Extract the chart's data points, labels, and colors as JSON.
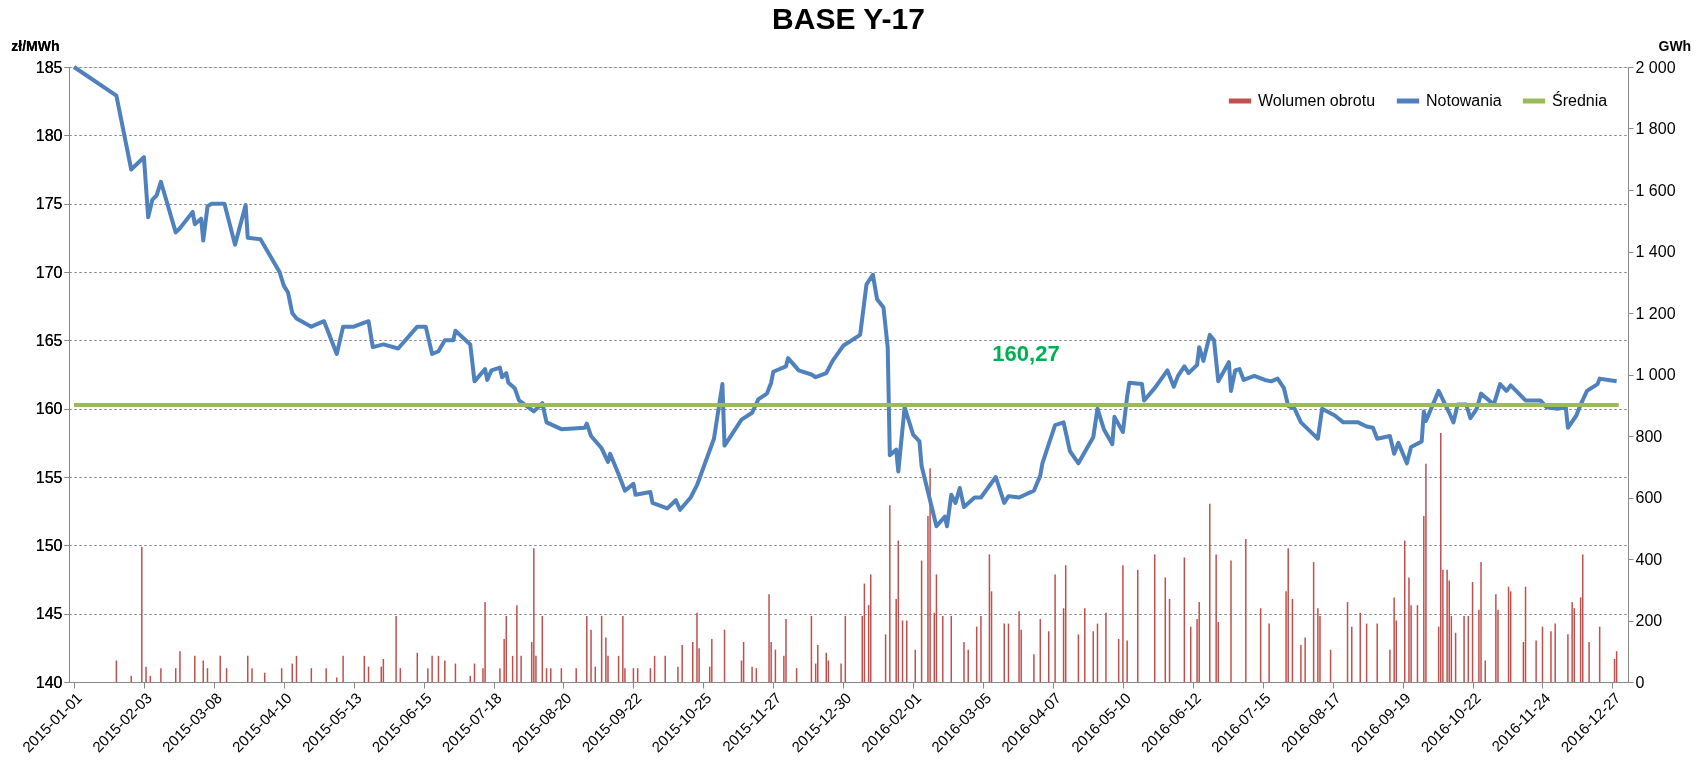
{
  "chart_data": {
    "type": "line",
    "title": "BASE   Y-17",
    "ylabel": "zł/MWh",
    "y2label": "GWh",
    "xlim": [
      "2015-01-01",
      "2017-01-01"
    ],
    "xticks": [
      "2015-01-01",
      "2015-02-03",
      "2015-03-08",
      "2015-04-10",
      "2015-05-13",
      "2015-06-15",
      "2015-07-18",
      "2015-08-20",
      "2015-09-22",
      "2015-10-25",
      "2015-11-27",
      "2015-12-30",
      "2016-02-01",
      "2016-03-05",
      "2016-04-07",
      "2016-05-10",
      "2016-06-12",
      "2016-07-15",
      "2016-08-17",
      "2016-09-19",
      "2016-10-22",
      "2016-11-24",
      "2016-12-27"
    ],
    "ylim": [
      140,
      185
    ],
    "yticks": [
      140,
      145,
      150,
      155,
      160,
      165,
      170,
      175,
      180,
      185
    ],
    "y2lim": [
      0,
      2000
    ],
    "y2ticks": [
      0,
      200,
      400,
      600,
      800,
      {
        "value": 1000,
        "label": "1 000"
      },
      {
        "value": 1200,
        "label": "1 200"
      },
      {
        "value": 1400,
        "label": "1 400"
      },
      {
        "value": 1600,
        "label": "1 600"
      },
      {
        "value": 1800,
        "label": "1 800"
      },
      {
        "value": 2000,
        "label": "2 000"
      }
    ],
    "grid": "y",
    "legend": "top right",
    "series": [
      {
        "name": "Wolumen obrotu",
        "type": "bar",
        "axis": "y2",
        "color": "#c0504d",
        "x": [
          "2015-01-21",
          "2015-01-28",
          "2015-02-02",
          "2015-02-04",
          "2015-02-06",
          "2015-02-11",
          "2015-02-18",
          "2015-02-20",
          "2015-02-27",
          "2015-03-03",
          "2015-03-05",
          "2015-03-11",
          "2015-03-14",
          "2015-03-24",
          "2015-03-26",
          "2015-04-01",
          "2015-04-09",
          "2015-04-14",
          "2015-04-16",
          "2015-04-23",
          "2015-04-30",
          "2015-05-05",
          "2015-05-08",
          "2015-05-18",
          "2015-05-20",
          "2015-05-26",
          "2015-05-27",
          "2015-06-02",
          "2015-06-04",
          "2015-06-12",
          "2015-06-17",
          "2015-06-19",
          "2015-06-22",
          "2015-06-25",
          "2015-06-30",
          "2015-07-07",
          "2015-07-09",
          "2015-07-13",
          "2015-07-14",
          "2015-07-21",
          "2015-07-23",
          "2015-07-24",
          "2015-07-27",
          "2015-07-29",
          "2015-07-31",
          "2015-08-05",
          "2015-08-06",
          "2015-08-07",
          "2015-08-10",
          "2015-08-12",
          "2015-08-14",
          "2015-08-19",
          "2015-08-26",
          "2015-08-31",
          "2015-09-02",
          "2015-09-04",
          "2015-09-07",
          "2015-09-09",
          "2015-09-10",
          "2015-09-15",
          "2015-09-17",
          "2015-09-18",
          "2015-09-22",
          "2015-09-24",
          "2015-09-30",
          "2015-10-02",
          "2015-10-07",
          "2015-10-13",
          "2015-10-15",
          "2015-10-20",
          "2015-10-22",
          "2015-10-23",
          "2015-10-28",
          "2015-10-29",
          "2015-11-04",
          "2015-11-12",
          "2015-11-13",
          "2015-11-17",
          "2015-11-19",
          "2015-11-25",
          "2015-11-26",
          "2015-11-28",
          "2015-12-02",
          "2015-12-03",
          "2015-12-08",
          "2015-12-15",
          "2015-12-17",
          "2015-12-18",
          "2015-12-22",
          "2015-12-23",
          "2015-12-29",
          "2015-12-31",
          "2016-01-08",
          "2016-01-09",
          "2016-01-11",
          "2016-01-12",
          "2016-01-19",
          "2016-01-21",
          "2016-01-24",
          "2016-01-25",
          "2016-01-27",
          "2016-01-29",
          "2016-02-02",
          "2016-02-05",
          "2016-02-08",
          "2016-02-09",
          "2016-02-11",
          "2016-02-12",
          "2016-02-15",
          "2016-02-19",
          "2016-02-25",
          "2016-02-27",
          "2016-03-02",
          "2016-03-04",
          "2016-03-08",
          "2016-03-09",
          "2016-03-15",
          "2016-03-17",
          "2016-03-22",
          "2016-03-23",
          "2016-03-29",
          "2016-04-01",
          "2016-04-05",
          "2016-04-08",
          "2016-04-12",
          "2016-04-13",
          "2016-04-19",
          "2016-04-22",
          "2016-04-26",
          "2016-04-28",
          "2016-05-02",
          "2016-05-08",
          "2016-05-10",
          "2016-05-12",
          "2016-05-17",
          "2016-05-25",
          "2016-05-30",
          "2016-06-01",
          "2016-06-08",
          "2016-06-11",
          "2016-06-14",
          "2016-06-15",
          "2016-06-20",
          "2016-06-23",
          "2016-06-24",
          "2016-06-30",
          "2016-07-07",
          "2016-07-14",
          "2016-07-18",
          "2016-07-26",
          "2016-07-27",
          "2016-07-29",
          "2016-08-02",
          "2016-08-04",
          "2016-08-08",
          "2016-08-10",
          "2016-08-11",
          "2016-08-16",
          "2016-08-24",
          "2016-08-26",
          "2016-08-30",
          "2016-09-02",
          "2016-09-07",
          "2016-09-13",
          "2016-09-15",
          "2016-09-16",
          "2016-09-20",
          "2016-09-22",
          "2016-09-23",
          "2016-09-26",
          "2016-09-29",
          "2016-09-30",
          "2016-10-06",
          "2016-10-07",
          "2016-10-08",
          "2016-10-10",
          "2016-10-11",
          "2016-10-12",
          "2016-10-14",
          "2016-10-18",
          "2016-10-20",
          "2016-10-22",
          "2016-10-25",
          "2016-10-26",
          "2016-10-28",
          "2016-11-02",
          "2016-11-03",
          "2016-11-08",
          "2016-11-09",
          "2016-11-15",
          "2016-11-16",
          "2016-11-21",
          "2016-11-24",
          "2016-11-28",
          "2016-11-30",
          "2016-12-06",
          "2016-12-08",
          "2016-12-09",
          "2016-12-12",
          "2016-12-13",
          "2016-12-16",
          "2016-12-21",
          "2016-12-28",
          "2016-12-29"
        ],
        "values": [
          70,
          20,
          440,
          50,
          20,
          45,
          45,
          100,
          85,
          70,
          45,
          85,
          45,
          85,
          45,
          30,
          45,
          60,
          85,
          45,
          45,
          15,
          85,
          85,
          50,
          50,
          75,
          215,
          45,
          95,
          45,
          85,
          85,
          70,
          60,
          20,
          60,
          45,
          260,
          45,
          140,
          215,
          85,
          250,
          85,
          130,
          435,
          85,
          215,
          45,
          45,
          45,
          45,
          215,
          170,
          50,
          215,
          145,
          85,
          85,
          215,
          45,
          45,
          45,
          45,
          85,
          85,
          50,
          120,
          130,
          225,
          110,
          50,
          140,
          170,
          70,
          130,
          50,
          45,
          285,
          130,
          105,
          85,
          205,
          45,
          215,
          60,
          120,
          95,
          70,
          60,
          215,
          215,
          320,
          250,
          350,
          155,
          575,
          270,
          460,
          200,
          200,
          105,
          395,
          540,
          695,
          225,
          350,
          215,
          215,
          130,
          105,
          180,
          215,
          415,
          295,
          190,
          190,
          230,
          170,
          90,
          205,
          165,
          350,
          240,
          380,
          155,
          240,
          165,
          190,
          225,
          140,
          380,
          135,
          365,
          415,
          340,
          270,
          405,
          180,
          205,
          260,
          580,
          415,
          195,
          395,
          465,
          240,
          190,
          295,
          435,
          270,
          120,
          145,
          390,
          240,
          215,
          105,
          260,
          180,
          225,
          190,
          190,
          105,
          275,
          200,
          460,
          340,
          250,
          250,
          540,
          710,
          180,
          810,
          365,
          365,
          330,
          215,
          160,
          215,
          215,
          325,
          235,
          390,
          70,
          285,
          235,
          310,
          295,
          130,
          310,
          135,
          180,
          165,
          190,
          155,
          260,
          240,
          275,
          415,
          130,
          180,
          75,
          100
        ]
      },
      {
        "name": "Notowania",
        "color": "#4f81bd",
        "x": [
          "2015-01-01",
          "2015-01-21",
          "2015-01-28",
          "2015-02-03",
          "2015-02-05",
          "2015-02-07",
          "2015-02-09",
          "2015-02-11",
          "2015-02-18",
          "2015-02-20",
          "2015-02-26",
          "2015-02-27",
          "2015-03-02",
          "2015-03-03",
          "2015-03-05",
          "2015-03-07",
          "2015-03-13",
          "2015-03-18",
          "2015-03-23",
          "2015-03-24",
          "2015-03-30",
          "2015-04-08",
          "2015-04-10",
          "2015-04-12",
          "2015-04-14",
          "2015-04-16",
          "2015-04-23",
          "2015-04-29",
          "2015-05-05",
          "2015-05-08",
          "2015-05-13",
          "2015-05-20",
          "2015-05-22",
          "2015-05-27",
          "2015-06-03",
          "2015-06-12",
          "2015-06-16",
          "2015-06-19",
          "2015-06-22",
          "2015-06-25",
          "2015-06-29",
          "2015-06-30",
          "2015-07-07",
          "2015-07-09",
          "2015-07-14",
          "2015-07-15",
          "2015-07-17",
          "2015-07-21",
          "2015-07-22",
          "2015-07-24",
          "2015-07-25",
          "2015-07-28",
          "2015-07-30",
          "2015-08-06",
          "2015-08-10",
          "2015-08-12",
          "2015-08-19",
          "2015-08-30",
          "2015-08-31",
          "2015-09-02",
          "2015-09-07",
          "2015-09-10",
          "2015-09-11",
          "2015-09-15",
          "2015-09-18",
          "2015-09-22",
          "2015-09-23",
          "2015-09-30",
          "2015-10-01",
          "2015-10-08",
          "2015-10-12",
          "2015-10-14",
          "2015-10-19",
          "2015-10-22",
          "2015-10-30",
          "2015-11-03",
          "2015-11-04",
          "2015-11-12",
          "2015-11-17",
          "2015-11-20",
          "2015-11-24",
          "2015-11-26",
          "2015-11-27",
          "2015-12-03",
          "2015-12-04",
          "2015-12-09",
          "2015-12-15",
          "2015-12-17",
          "2015-12-22",
          "2015-12-25",
          "2015-12-30",
          "2016-01-07",
          "2016-01-10",
          "2016-01-13",
          "2016-01-15",
          "2016-01-18",
          "2016-01-20",
          "2016-01-21",
          "2016-01-24",
          "2016-01-25",
          "2016-01-28",
          "2016-02-01",
          "2016-02-04",
          "2016-02-05",
          "2016-02-12",
          "2016-02-16",
          "2016-02-17",
          "2016-02-19",
          "2016-02-21",
          "2016-02-23",
          "2016-02-25",
          "2016-03-01",
          "2016-03-04",
          "2016-03-11",
          "2016-03-15",
          "2016-03-17",
          "2016-03-22",
          "2016-03-29",
          "2016-04-01",
          "2016-04-02",
          "2016-04-05",
          "2016-04-08",
          "2016-04-12",
          "2016-04-15",
          "2016-04-19",
          "2016-04-23",
          "2016-04-26",
          "2016-04-28",
          "2016-05-01",
          "2016-05-05",
          "2016-05-06",
          "2016-05-10",
          "2016-05-12",
          "2016-05-13",
          "2016-05-19",
          "2016-05-20",
          "2016-05-25",
          "2016-05-31",
          "2016-06-03",
          "2016-06-05",
          "2016-06-08",
          "2016-06-10",
          "2016-06-14",
          "2016-06-15",
          "2016-06-17",
          "2016-06-20",
          "2016-06-22",
          "2016-06-24",
          "2016-06-29",
          "2016-06-30",
          "2016-07-02",
          "2016-07-04",
          "2016-07-06",
          "2016-07-11",
          "2016-07-16",
          "2016-07-19",
          "2016-07-22",
          "2016-07-25",
          "2016-07-27",
          "2016-07-30",
          "2016-08-02",
          "2016-08-08",
          "2016-08-10",
          "2016-08-12",
          "2016-08-18",
          "2016-08-22",
          "2016-08-29",
          "2016-09-02",
          "2016-09-05",
          "2016-09-07",
          "2016-09-13",
          "2016-09-15",
          "2016-09-17",
          "2016-09-21",
          "2016-09-23",
          "2016-09-28",
          "2016-09-29",
          "2016-09-30",
          "2016-10-06",
          "2016-10-11",
          "2016-10-13",
          "2016-10-15",
          "2016-10-19",
          "2016-10-21",
          "2016-10-24",
          "2016-10-26",
          "2016-11-01",
          "2016-11-04",
          "2016-11-07",
          "2016-11-09",
          "2016-11-16",
          "2016-11-23",
          "2016-11-26",
          "2016-12-01",
          "2016-12-05",
          "2016-12-06",
          "2016-12-10",
          "2016-12-12",
          "2016-12-15",
          "2016-12-20",
          "2016-12-21",
          "2016-12-25",
          "2016-12-29"
        ],
        "values": [
          185,
          182.9,
          177.5,
          178.4,
          174.0,
          175.3,
          175.6,
          176.6,
          172.9,
          173.2,
          174.4,
          173.5,
          173.9,
          172.3,
          174.8,
          175,
          175,
          172,
          174.9,
          172.5,
          172.4,
          170.0,
          169.0,
          168.5,
          167.0,
          166.6,
          166.0,
          166.4,
          164.0,
          166.0,
          166.0,
          166.4,
          164.5,
          164.7,
          164.4,
          166.0,
          166.0,
          164.0,
          164.2,
          165.0,
          165.0,
          165.7,
          164.7,
          162.0,
          162.9,
          162.1,
          162.8,
          163.0,
          162.3,
          162.6,
          161.9,
          161.5,
          160.6,
          159.8,
          160.4,
          159.0,
          158.5,
          158.6,
          158.9,
          158.0,
          157.1,
          156.1,
          156.7,
          155.2,
          154.0,
          154.5,
          153.7,
          153.9,
          153.1,
          152.7,
          153.3,
          152.6,
          153.5,
          154.4,
          157.8,
          161.8,
          157.3,
          159.2,
          159.7,
          160.7,
          161.1,
          161.9,
          162.7,
          163.1,
          163.7,
          162.8,
          162.5,
          162.3,
          162.6,
          163.5,
          164.6,
          165.4,
          169.1,
          169.8,
          168.0,
          167.4,
          164.5,
          156.6,
          157.0,
          155.4,
          160.1,
          158.1,
          157.6,
          155.8,
          151.4,
          152.1,
          151.4,
          153.7,
          153.1,
          154.2,
          152.8,
          153.5,
          153.5,
          155.0,
          153.1,
          153.6,
          153.5,
          154.0,
          155.1,
          156.0,
          157.4,
          158.8,
          159.0,
          156.9,
          156.0,
          157.1,
          157.9,
          160.0,
          158.5,
          157.4,
          159.4,
          158.3,
          160.9,
          161.9,
          161.8,
          160.6,
          161.5,
          162.8,
          161.6,
          162.4,
          163.1,
          162.6,
          163.2,
          164.5,
          163.5,
          165.4,
          165.0,
          162.0,
          163.4,
          161.3,
          162.8,
          162.9,
          162.1,
          162.4,
          162.1,
          162.0,
          162.2,
          161.5,
          160.2,
          160.0,
          159.0,
          158.1,
          157.8,
          160.0,
          159.5,
          159.0,
          159.0,
          158.7,
          158.6,
          157.8,
          158.0,
          156.7,
          157.5,
          156.0,
          157.2,
          157.6,
          159.8,
          159.1,
          161.3,
          159.7,
          159.0,
          160.3,
          160.3,
          159.3,
          160.0,
          161.1,
          160.3,
          161.8,
          161.3,
          161.7,
          160.6,
          160.6,
          160.1,
          160.0,
          160.1,
          158.6,
          159.5,
          160.3,
          161.3,
          161.8,
          162.2,
          162.1,
          162.0
        ]
      },
      {
        "name": "Średnia",
        "color": "#9bbb59",
        "x": [
          "2015-01-01",
          "2016-12-30"
        ],
        "values": [
          160.27,
          160.27
        ]
      }
    ],
    "annotations": [
      "160,27"
    ]
  }
}
